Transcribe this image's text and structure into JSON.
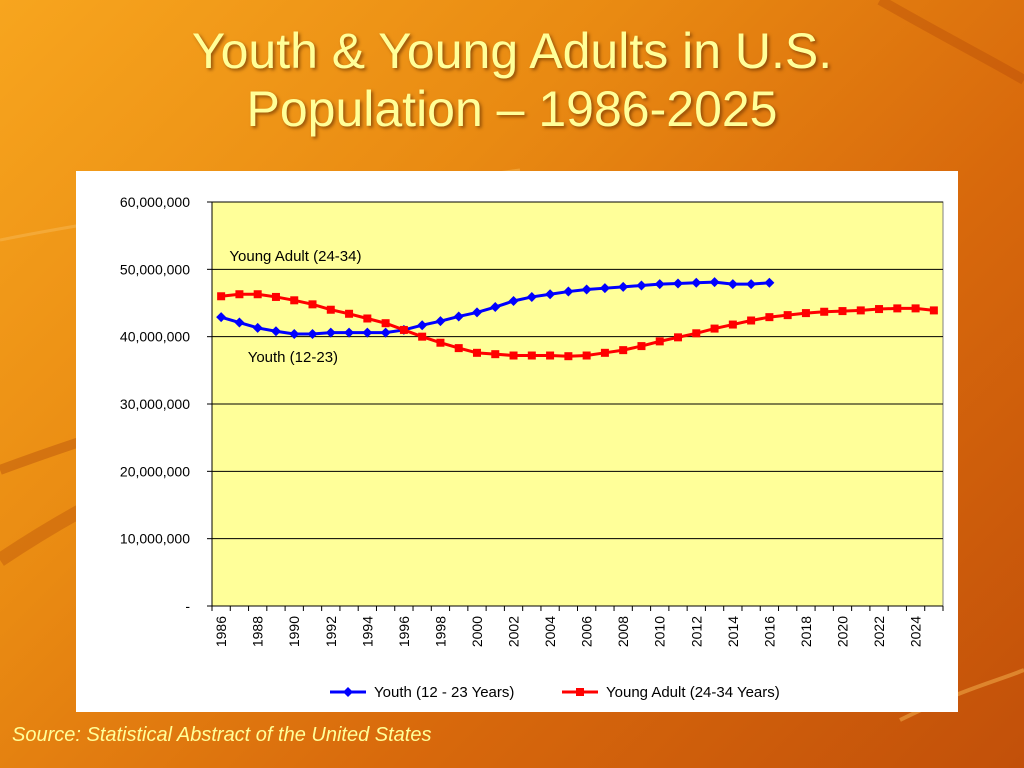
{
  "slide": {
    "title_line1": "Youth & Young Adults in U.S.",
    "title_line2": "Population – 1986-2025",
    "source": "Source: Statistical Abstract of the United States"
  },
  "colors": {
    "plot_background": "#ffff99",
    "youth": "#0000ff",
    "young_adult": "#ff0000",
    "title_text": "#ffff99"
  },
  "chart_data": {
    "type": "line",
    "title": "",
    "xlabel": "",
    "ylabel": "",
    "ylim": [
      0,
      60000000
    ],
    "y_ticks": [
      0,
      10000000,
      20000000,
      30000000,
      40000000,
      50000000,
      60000000
    ],
    "y_tick_labels": [
      "-",
      "10,000,000",
      "20,000,000",
      "30,000,000",
      "40,000,000",
      "50,000,000",
      "60,000,000"
    ],
    "x_range": [
      1986,
      2025
    ],
    "x_tick_labels": [
      "1986",
      "1988",
      "1990",
      "1992",
      "1994",
      "1996",
      "1998",
      "2000",
      "2002",
      "2004",
      "2006",
      "2008",
      "2010",
      "2012",
      "2014",
      "2016",
      "2018",
      "2020",
      "2022",
      "2024"
    ],
    "grid": "horizontal",
    "legend_position": "bottom",
    "annotations": [
      {
        "text": "Young Adult (24-34)",
        "year": 1987,
        "value": 52000000
      },
      {
        "text": "Youth (12-23)",
        "year": 1988,
        "value": 37000000
      }
    ],
    "series": [
      {
        "name": "Youth (12 - 23 Years)",
        "marker": "diamond",
        "x": [
          1986,
          1987,
          1988,
          1989,
          1990,
          1991,
          1992,
          1993,
          1994,
          1995,
          1996,
          1997,
          1998,
          1999,
          2000,
          2001,
          2002,
          2003,
          2004,
          2005,
          2006,
          2007,
          2008,
          2009,
          2010,
          2011,
          2012,
          2013,
          2014,
          2015,
          2016
        ],
        "values": [
          42900000,
          42100000,
          41300000,
          40800000,
          40400000,
          40400000,
          40600000,
          40600000,
          40600000,
          40600000,
          41000000,
          41700000,
          42300000,
          43000000,
          43600000,
          44400000,
          45300000,
          45900000,
          46300000,
          46700000,
          47000000,
          47200000,
          47400000,
          47600000,
          47800000,
          47900000,
          48000000,
          48100000,
          47800000,
          47800000,
          48000000
        ]
      },
      {
        "name": "Young Adult (24-34 Years)",
        "marker": "square",
        "x": [
          1986,
          1987,
          1988,
          1989,
          1990,
          1991,
          1992,
          1993,
          1994,
          1995,
          1996,
          1997,
          1998,
          1999,
          2000,
          2001,
          2002,
          2003,
          2004,
          2005,
          2006,
          2007,
          2008,
          2009,
          2010,
          2011,
          2012,
          2013,
          2014,
          2015,
          2016,
          2017,
          2018,
          2019,
          2020,
          2021,
          2022,
          2023,
          2024,
          2025
        ],
        "values": [
          46000000,
          46300000,
          46300000,
          45900000,
          45400000,
          44800000,
          44000000,
          43400000,
          42700000,
          42000000,
          41000000,
          40000000,
          39100000,
          38300000,
          37600000,
          37400000,
          37200000,
          37200000,
          37200000,
          37100000,
          37200000,
          37600000,
          38000000,
          38600000,
          39300000,
          39900000,
          40500000,
          41200000,
          41800000,
          42400000,
          42900000,
          43200000,
          43500000,
          43700000,
          43800000,
          43900000,
          44100000,
          44200000,
          44200000,
          43900000
        ]
      }
    ]
  }
}
